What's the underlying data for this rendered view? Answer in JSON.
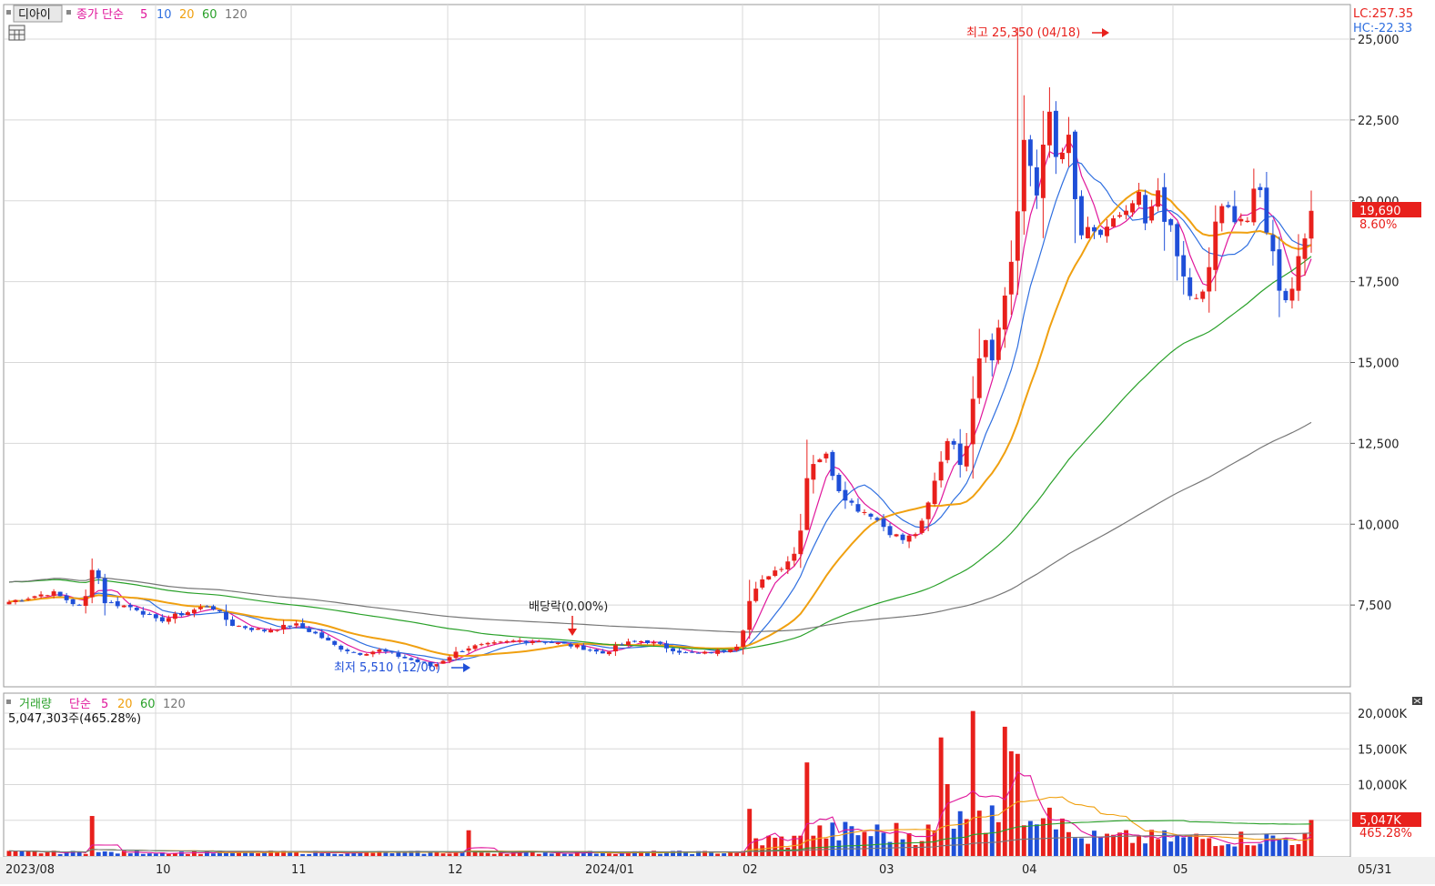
{
  "price_panel": {
    "stock_name": "디아이",
    "legend_title": "종가 단순",
    "ma_periods": [
      "5",
      "10",
      "20",
      "60",
      "120"
    ],
    "ma_colors": [
      "#e0169b",
      "#2f6fe0",
      "#f0a010",
      "#2aa12a",
      "#777777"
    ],
    "lc_label": "LC:257.35",
    "hc_label": "HC:-22.33",
    "last_price_label": "19,690",
    "last_change_label": "8.60%",
    "max_annotation": "최고 25,350 (04/18)",
    "min_annotation": "최저 5,510 (12/06)",
    "dividend_annotation": "배당락(0.00%)"
  },
  "volume_panel": {
    "legend_title": "거래량",
    "legend_type": "단순",
    "ma_periods": [
      "5",
      "20",
      "60",
      "120"
    ],
    "ma_colors": [
      "#e0169b",
      "#f0a010",
      "#2aa12a",
      "#777777"
    ],
    "last_volume_text": "5,047,303주(465.28%)",
    "last_volume_label": "5,047K",
    "last_volume_pct": "465.28%"
  },
  "colors": {
    "up": "#e8201c",
    "down": "#1f4fd8",
    "grid": "#d8d8d8",
    "badge": "#e8201c"
  },
  "chart_data": {
    "type": "candlestick",
    "x_tick_labels": [
      "2023/08",
      "10",
      "11",
      "12",
      "2024/01",
      "02",
      "03",
      "04",
      "05",
      "05/31"
    ],
    "price_axis": {
      "min": 5000,
      "max": 26000,
      "ticks": [
        "7,500",
        "10,000",
        "12,500",
        "15,000",
        "17,500",
        "20,000",
        "22,500",
        "25,000"
      ],
      "tick_values": [
        7500,
        10000,
        12500,
        15000,
        17500,
        20000,
        22500,
        25000
      ]
    },
    "volume_axis": {
      "unit": "K",
      "ticks": [
        "5,000K",
        "10,000K",
        "15,000K",
        "20,000K"
      ],
      "tick_values": [
        5000,
        10000,
        15000,
        20000
      ]
    },
    "max_point": {
      "date": "04/18",
      "value": 25350
    },
    "min_point": {
      "date": "12/06",
      "value": 5510
    },
    "last_close": 19690,
    "last_volume": 5047303
  }
}
